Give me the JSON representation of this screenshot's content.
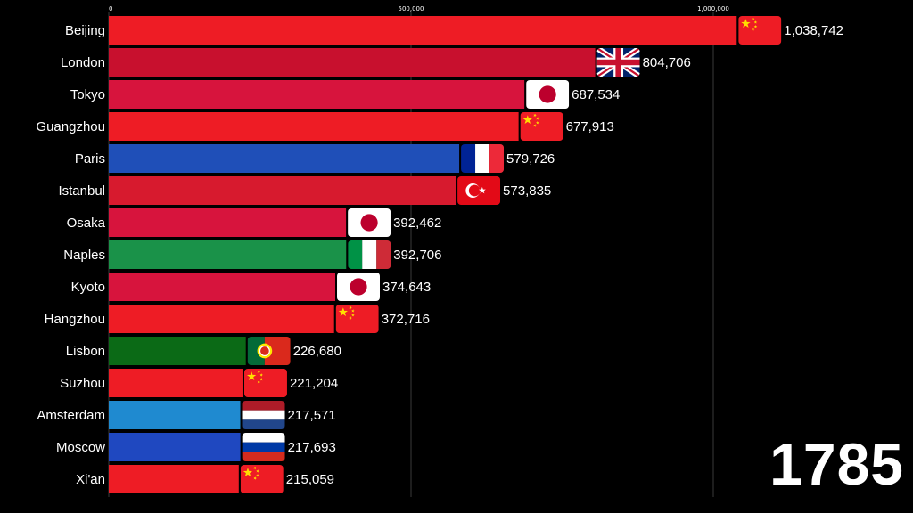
{
  "year": "1785",
  "colors": {
    "background": "#000000",
    "gridline": "#3a3a3a",
    "china": "#ee1c25",
    "uk": "#c8102e",
    "japan": "#d7143d",
    "france": "#1f4fb8",
    "turkey": "#d71a2e",
    "italy": "#1a9249",
    "portugal": "#0b6a16",
    "netherlands": "#1f8ad0",
    "russia": "#1f48c0"
  },
  "chart_data": {
    "type": "bar",
    "orientation": "horizontal",
    "title": "",
    "xlabel": "",
    "ylabel": "",
    "xlim": [
      0,
      1038742
    ],
    "x_ticks": [
      0,
      500000,
      1000000
    ],
    "x_tick_labels": [
      "0",
      "500,000",
      "1,000,000"
    ],
    "grid": true,
    "categories": [
      "Beijing",
      "London",
      "Tokyo",
      "Guangzhou",
      "Paris",
      "Istanbul",
      "Osaka",
      "Naples",
      "Kyoto",
      "Hangzhou",
      "Lisbon",
      "Suzhou",
      "Amsterdam",
      "Moscow",
      "Xi'an"
    ],
    "values": [
      1038742,
      804706,
      687534,
      677913,
      579726,
      573835,
      392462,
      392706,
      374643,
      372716,
      226680,
      221204,
      217571,
      217693,
      215059
    ],
    "value_labels": [
      "1,038,742",
      "804,706",
      "687,534",
      "677,913",
      "579,726",
      "573,835",
      "392,462",
      "392,706",
      "374,643",
      "372,716",
      "226,680",
      "221,204",
      "217,571",
      "217,693",
      "215,059"
    ],
    "flags": [
      "china-flag",
      "uk-flag",
      "japan-flag",
      "china-flag",
      "france-flag",
      "turkey-flag",
      "japan-flag",
      "italy-flag",
      "japan-flag",
      "china-flag",
      "portugal-flag",
      "china-flag",
      "netherlands-flag",
      "russia-flag",
      "china-flag"
    ],
    "bar_colors": [
      "#ee1c25",
      "#c8102e",
      "#d7143d",
      "#ee1c25",
      "#1f4fb8",
      "#d71a2e",
      "#d7143d",
      "#1a9249",
      "#d7143d",
      "#ee1c25",
      "#0b6a16",
      "#ee1c25",
      "#1f8ad0",
      "#1f48c0",
      "#ee1c25"
    ]
  }
}
